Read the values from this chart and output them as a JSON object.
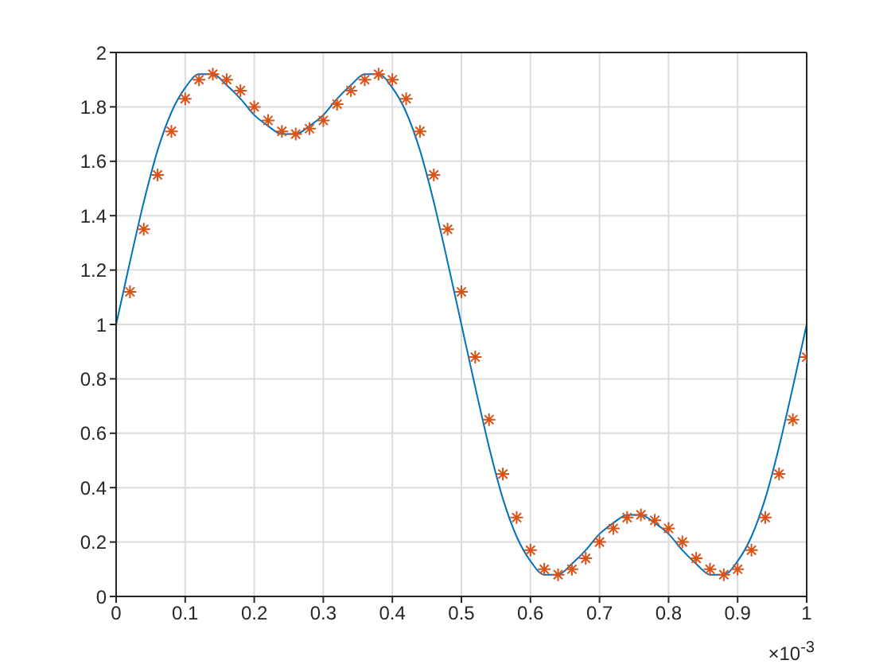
{
  "chart_data": {
    "type": "line",
    "xlim": [
      0,
      1
    ],
    "ylim": [
      0,
      2
    ],
    "xticks": [
      0,
      0.1,
      0.2,
      0.3,
      0.4,
      0.5,
      0.6,
      0.7,
      0.8,
      0.9,
      1
    ],
    "yticks": [
      0,
      0.2,
      0.4,
      0.6,
      0.8,
      1,
      1.2,
      1.4,
      1.6,
      1.8,
      2
    ],
    "grid": true,
    "annotations": [
      "×10$^{-3}$"
    ],
    "series": [
      {
        "type": "line",
        "color": "#0072bd",
        "marker": "none",
        "line_style": "solid",
        "x": [
          0,
          0.02,
          0.04,
          0.06,
          0.08,
          0.1,
          0.12,
          0.14,
          0.16,
          0.18,
          0.2,
          0.22,
          0.24,
          0.26,
          0.28,
          0.3,
          0.32,
          0.34,
          0.36,
          0.38,
          0.4,
          0.42,
          0.44,
          0.46,
          0.48,
          0.5,
          0.52,
          0.54,
          0.56,
          0.58,
          0.6,
          0.62,
          0.64,
          0.66,
          0.68,
          0.7,
          0.72,
          0.74,
          0.76,
          0.78,
          0.8,
          0.82,
          0.84,
          0.86,
          0.88,
          0.9,
          0.92,
          0.94,
          0.96,
          0.98,
          1
        ],
        "values": [
          1,
          1.23,
          1.45,
          1.64,
          1.78,
          1.87,
          1.92,
          1.92,
          1.88,
          1.83,
          1.77,
          1.73,
          1.7,
          1.7,
          1.73,
          1.77,
          1.83,
          1.88,
          1.92,
          1.92,
          1.87,
          1.78,
          1.64,
          1.45,
          1.23,
          1,
          0.77,
          0.55,
          0.36,
          0.22,
          0.13,
          0.08,
          0.08,
          0.12,
          0.17,
          0.23,
          0.27,
          0.3,
          0.3,
          0.27,
          0.23,
          0.17,
          0.12,
          0.08,
          0.08,
          0.13,
          0.22,
          0.36,
          0.55,
          0.77,
          1
        ]
      },
      {
        "type": "scatter",
        "color": "#d95319",
        "marker": "cross",
        "x": [
          0.02,
          0.04,
          0.06,
          0.08,
          0.1,
          0.12,
          0.14,
          0.16,
          0.18,
          0.2,
          0.22,
          0.24,
          0.26,
          0.28,
          0.3,
          0.32,
          0.34,
          0.36,
          0.38,
          0.4,
          0.42,
          0.44,
          0.46,
          0.48,
          0.5,
          0.52,
          0.54,
          0.56,
          0.58,
          0.6,
          0.62,
          0.64,
          0.66,
          0.68,
          0.7,
          0.72,
          0.74,
          0.76,
          0.78,
          0.8,
          0.82,
          0.84,
          0.86,
          0.88,
          0.9,
          0.92,
          0.94,
          0.96,
          0.98,
          1
        ],
        "values": [
          1.12,
          1.35,
          1.55,
          1.71,
          1.83,
          1.9,
          1.92,
          1.9,
          1.86,
          1.8,
          1.75,
          1.71,
          1.7,
          1.72,
          1.75,
          1.81,
          1.86,
          1.9,
          1.92,
          1.9,
          1.83,
          1.71,
          1.55,
          1.35,
          1.12,
          0.88,
          0.65,
          0.45,
          0.29,
          0.17,
          0.1,
          0.08,
          0.1,
          0.14,
          0.2,
          0.25,
          0.29,
          0.3,
          0.28,
          0.25,
          0.2,
          0.14,
          0.1,
          0.08,
          0.1,
          0.17,
          0.29,
          0.45,
          0.65,
          0.88
        ]
      }
    ]
  }
}
